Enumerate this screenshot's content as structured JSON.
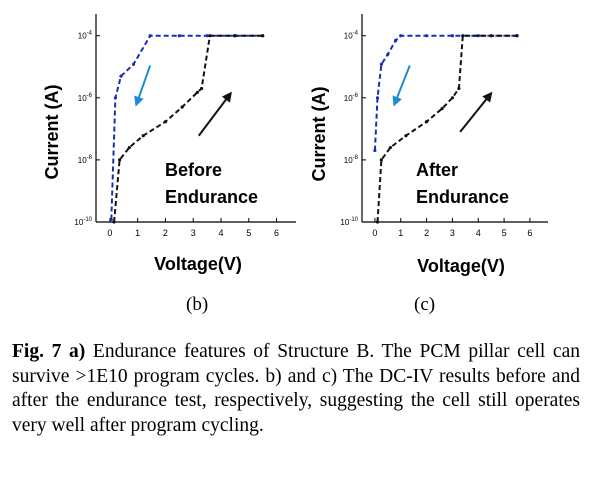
{
  "chart_data": [
    {
      "type": "line",
      "panel_label": "(b)",
      "xlabel": "Voltage(V)",
      "ylabel": "Current (A)",
      "annotation": [
        "Before",
        "Endurance"
      ],
      "yscale": "log",
      "xlim": [
        -0.5,
        6.7
      ],
      "ylim": [
        1e-10,
        0.0005
      ],
      "xticks": [
        "0",
        "1",
        "2",
        "3",
        "4",
        "5",
        "6"
      ],
      "yticks": [
        {
          "value": 1e-10,
          "exp": "-10"
        },
        {
          "value": 1e-08,
          "exp": "-8"
        },
        {
          "value": 1e-06,
          "exp": "-6"
        },
        {
          "value": 0.0001,
          "exp": "-4"
        }
      ],
      "series": [
        {
          "color": "#1a2fb0",
          "style": "dashed",
          "x": [
            0.05,
            0.2,
            0.4,
            0.85,
            1.45,
            2.5,
            3.5,
            4.5,
            5.5
          ],
          "y": [
            1.2e-10,
            1e-06,
            5e-06,
            1.2e-05,
            0.0001,
            0.0001,
            0.0001,
            0.0001,
            0.0001
          ]
        },
        {
          "color": "#111111",
          "style": "dashed",
          "x": [
            0.15,
            0.35,
            0.7,
            1.2,
            2.0,
            2.6,
            3.15,
            3.3,
            3.6,
            4.5,
            5.5
          ],
          "y": [
            1e-10,
            1e-08,
            2.5e-08,
            6e-08,
            1.7e-07,
            5e-07,
            1.5e-06,
            2e-06,
            0.0001,
            0.0001,
            0.0001
          ]
        }
      ],
      "arrows": [
        {
          "color": "#1f8ad4",
          "from": [
            1.45,
            1.1e-05
          ],
          "to": [
            0.95,
            6e-07
          ]
        },
        {
          "color": "#111111",
          "from": [
            3.2,
            6e-08
          ],
          "to": [
            4.35,
            1.4e-06
          ]
        }
      ]
    },
    {
      "type": "line",
      "panel_label": "(c)",
      "xlabel": "Voltage(V)",
      "ylabel": "Current (A)",
      "annotation": [
        "After",
        "Endurance"
      ],
      "yscale": "log",
      "xlim": [
        -0.5,
        6.7
      ],
      "ylim": [
        1e-10,
        0.0005
      ],
      "xticks": [
        "0",
        "1",
        "2",
        "3",
        "4",
        "5",
        "6"
      ],
      "yticks": [
        {
          "value": 1e-10,
          "exp": "-10"
        },
        {
          "value": 1e-08,
          "exp": "-8"
        },
        {
          "value": 1e-06,
          "exp": "-6"
        },
        {
          "value": 0.0001,
          "exp": "-4"
        }
      ],
      "series": [
        {
          "color": "#1a2fb0",
          "style": "dashed",
          "x": [
            0.0,
            0.1,
            0.25,
            0.5,
            0.8,
            1.0,
            2.0,
            3.0,
            4.0,
            5.5
          ],
          "y": [
            2e-08,
            1e-06,
            1.2e-05,
            2.5e-05,
            7e-05,
            0.0001,
            0.0001,
            0.0001,
            0.0001,
            0.0001
          ]
        },
        {
          "color": "#111111",
          "style": "dashed",
          "x": [
            0.1,
            0.25,
            0.6,
            1.2,
            2.0,
            2.6,
            3.0,
            3.25,
            3.4,
            4.5,
            5.5
          ],
          "y": [
            1e-10,
            1e-08,
            2.5e-08,
            6e-08,
            1.7e-07,
            4.5e-07,
            1e-06,
            2e-06,
            0.0001,
            0.0001,
            0.0001
          ]
        }
      ],
      "arrows": [
        {
          "color": "#1f8ad4",
          "from": [
            1.35,
            1.1e-05
          ],
          "to": [
            0.75,
            6e-07
          ]
        },
        {
          "color": "#111111",
          "from": [
            3.3,
            8e-08
          ],
          "to": [
            4.5,
            1.4e-06
          ]
        }
      ]
    }
  ],
  "caption": {
    "fig_label": "Fig. 7 a)",
    "text": " Endurance features of Structure B. The PCM pillar cell can survive >1E10 program cycles.  b) and c) The DC-IV results before and after the endurance test, respectively, suggesting the cell still operates very well after program cycling."
  }
}
